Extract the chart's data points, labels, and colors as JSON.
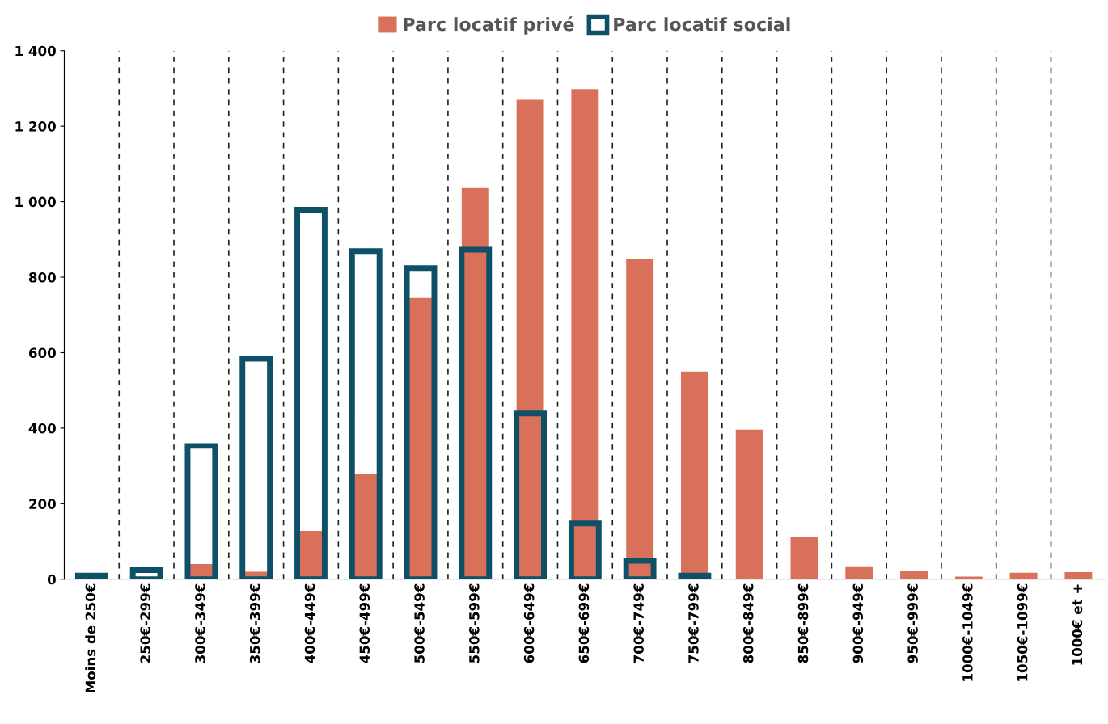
{
  "chart_data": {
    "type": "bar",
    "categories": [
      "Moins de 250€",
      "250€-299€",
      "300€-349€",
      "350€-399€",
      "400€-449€",
      "450€-499€",
      "500€-549€",
      "550€-599€",
      "600€-649€",
      "650€-699€",
      "700€-749€",
      "750€-799€",
      "800€-849€",
      "850€-899€",
      "900€-949€",
      "950€-999€",
      "1000€-1049€",
      "1050€-1099€",
      "1000€ et +"
    ],
    "series": [
      {
        "name": "Parc locatif privé",
        "color": "#d9705a",
        "values": [
          0,
          0,
          40,
          20,
          128,
          278,
          745,
          1036,
          1270,
          1298,
          848,
          550,
          396,
          113,
          32,
          21,
          7,
          17,
          19
        ]
      },
      {
        "name": "Parc locatif social",
        "color": "#0e5068",
        "values": [
          10,
          24,
          353,
          584,
          979,
          869,
          824,
          873,
          439,
          148,
          49,
          10,
          null,
          null,
          null,
          null,
          null,
          null,
          null
        ]
      }
    ],
    "ylim": [
      0,
      1400
    ],
    "yticks": [
      0,
      200,
      400,
      600,
      800,
      {
        "value": 1000,
        "label": "1 000"
      },
      {
        "value": 1200,
        "label": "1 200"
      },
      {
        "value": 1400,
        "label": "1 400"
      }
    ],
    "grid": "x",
    "line_style": "dashed",
    "legend": "top"
  }
}
